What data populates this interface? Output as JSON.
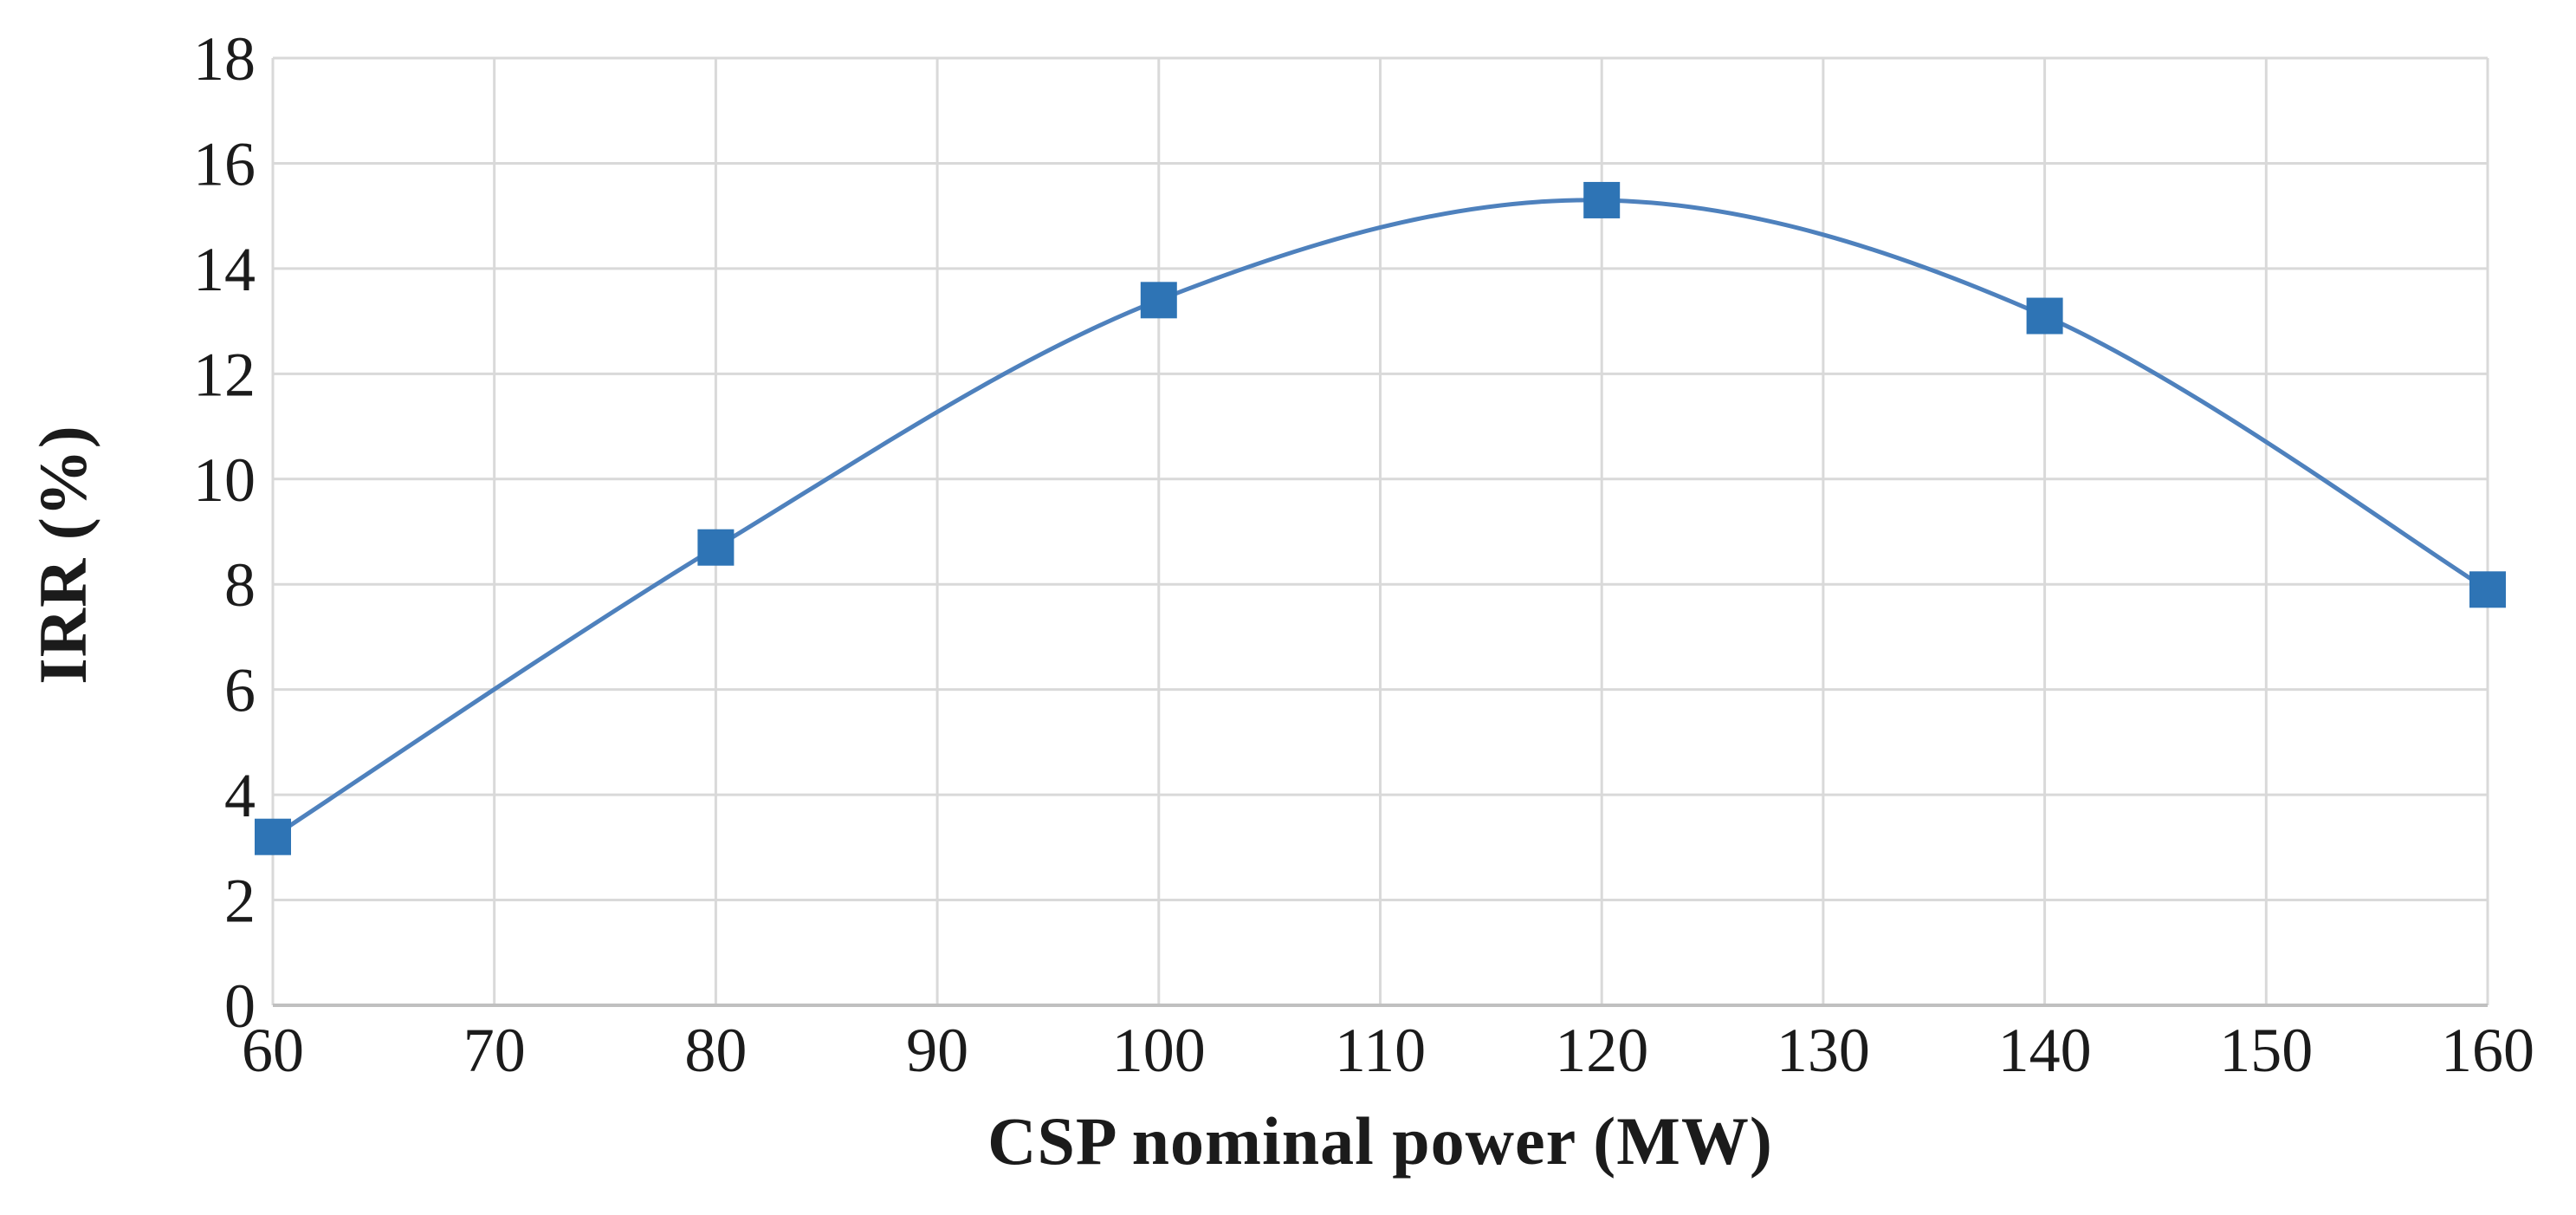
{
  "figure": {
    "background_color": "#ffffff",
    "text_color": "#1b1b1b"
  },
  "chart_data": {
    "type": "line",
    "title": "",
    "xlabel": "CSP nominal power (MW)",
    "ylabel": "IRR (%)",
    "x": [
      60,
      80,
      100,
      120,
      140,
      160
    ],
    "series": [
      {
        "name": "IRR",
        "values": [
          3.2,
          8.7,
          13.4,
          15.3,
          13.1,
          7.9
        ],
        "line_color": "#4e81bd",
        "marker_color": "#2e74b5",
        "marker_shape": "square",
        "smooth": true
      }
    ],
    "xlim": [
      60,
      160
    ],
    "ylim": [
      0,
      18
    ],
    "x_ticks": [
      60,
      70,
      80,
      90,
      100,
      110,
      120,
      130,
      140,
      150,
      160
    ],
    "y_ticks": [
      0,
      2,
      4,
      6,
      8,
      10,
      12,
      14,
      16,
      18
    ],
    "grid": "both",
    "gridline_color": "#d9d9d9",
    "axis_line_color": "#c0c0c0",
    "legend": "none"
  }
}
